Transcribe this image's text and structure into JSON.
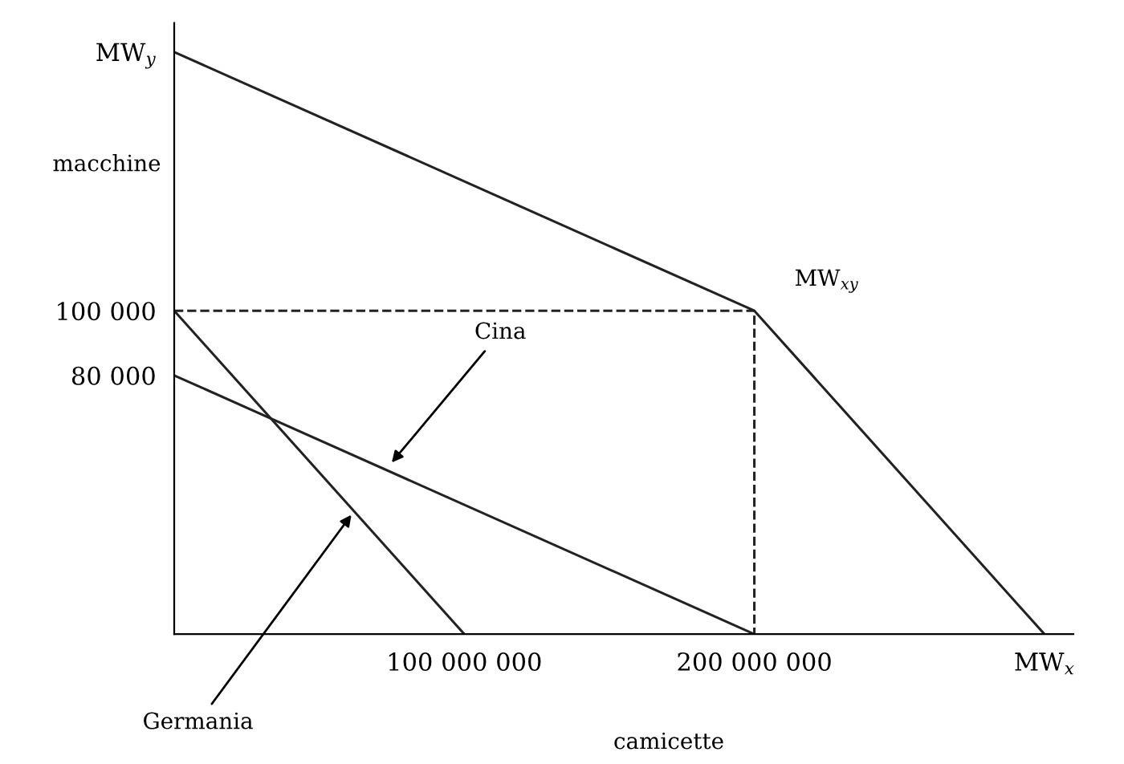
{
  "chart_data": {
    "type": "line",
    "xlabel": "camicette",
    "ylabel": "macchine",
    "series": [
      {
        "color": "#222222",
        "x": [
          0,
          100000000
        ],
        "values": [
          100000,
          0
        ]
      },
      {
        "color": "#222222",
        "x": [
          0,
          200000000
        ],
        "values": [
          80000,
          0
        ]
      },
      {
        "color": "#222222",
        "x": [
          0,
          200000000,
          300000000
        ],
        "values": [
          180000,
          100000,
          0
        ]
      },
      {
        "color": "#222222",
        "x": [
          0,
          200000000,
          200000000
        ],
        "values": [
          100000,
          100000,
          0
        ],
        "line_style": "dashed"
      }
    ],
    "xlim": [
      0,
      310000000
    ],
    "ylim": [
      0,
      189000
    ],
    "xticks": [
      {
        "value": 100000000,
        "label": "100 000 000"
      },
      {
        "value": 200000000,
        "label": "200 000 000"
      },
      {
        "value": 300000000,
        "label": "MW$_{x}$"
      }
    ],
    "yticks": [
      {
        "value": 80000,
        "label": "80 000"
      },
      {
        "value": 100000,
        "label": "100 000"
      },
      {
        "value": 180000,
        "label": "MW$_{y}$"
      }
    ],
    "annotations": [
      {
        "text": "Germania",
        "x": 62000000,
        "y": 38000
      },
      {
        "text": "Cina",
        "x": 74000000,
        "y": 52000
      },
      {
        "text": "MW$_{xy}$",
        "x": 200000000,
        "y": 100000
      }
    ],
    "grid": false,
    "legend": false,
    "marker": "none",
    "line_style": "solid"
  }
}
